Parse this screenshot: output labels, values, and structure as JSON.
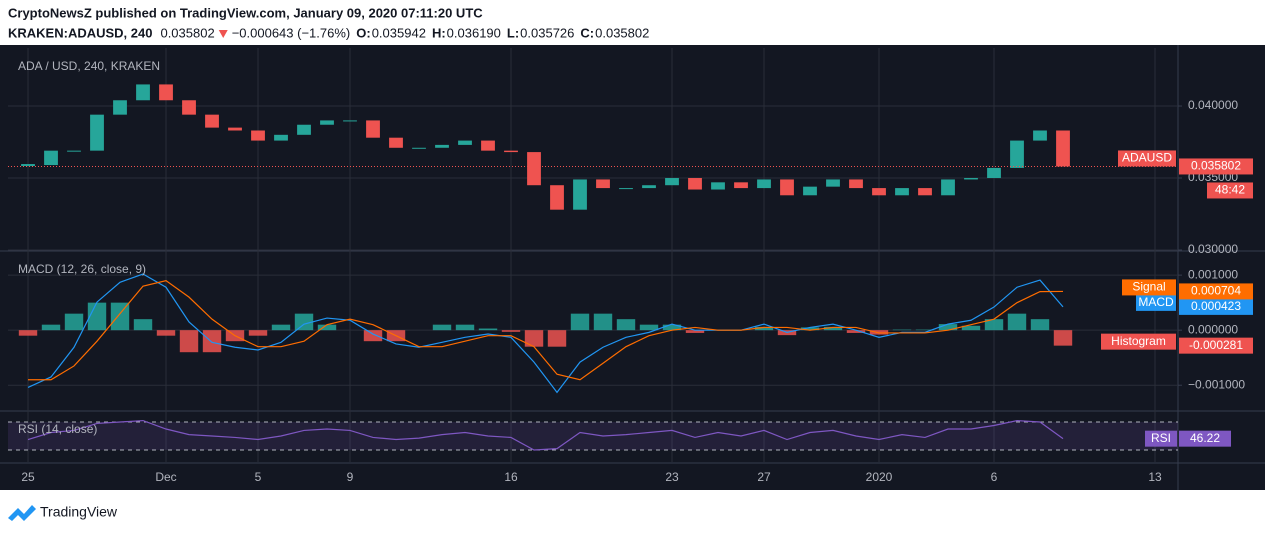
{
  "header": {
    "publisher": "CryptoNewsZ published on TradingView.com, January 09, 2020 07:11:20 UTC",
    "symbol": "KRAKEN:ADAUSD, 240",
    "last": "0.035802",
    "change": "−0.000643 (−1.76%)",
    "ohlc": [
      {
        "label": "O:",
        "value": "0.035942"
      },
      {
        "label": "H:",
        "value": "0.036190"
      },
      {
        "label": "L:",
        "value": "0.035726"
      },
      {
        "label": "C:",
        "value": "0.035802"
      }
    ]
  },
  "footer": {
    "brand": "TradingView"
  },
  "chart_data": [
    {
      "type": "candlestick",
      "title": "ADA / USD, 240, KRAKEN",
      "x": [
        0,
        1,
        2,
        3,
        4,
        5,
        6,
        7,
        8,
        9,
        10,
        11,
        12,
        13,
        14,
        15,
        16,
        17,
        18,
        19,
        20,
        21,
        22,
        23,
        24,
        25,
        26,
        27,
        28,
        29,
        30,
        31,
        32,
        33,
        34,
        35,
        36,
        37,
        38,
        39,
        40,
        41,
        42,
        43,
        44,
        45
      ],
      "xlim": [
        -0.87,
        50
      ],
      "xticks": [
        {
          "value": 0,
          "label": "25"
        },
        {
          "value": 6,
          "label": "Dec"
        },
        {
          "value": 10,
          "label": "5"
        },
        {
          "value": 14,
          "label": "9"
        },
        {
          "value": 21,
          "label": "16"
        },
        {
          "value": 28,
          "label": "23"
        },
        {
          "value": 32,
          "label": "27"
        },
        {
          "value": 37,
          "label": "2020"
        },
        {
          "value": 42,
          "label": "6"
        },
        {
          "value": 49,
          "label": "13"
        }
      ],
      "ylim": [
        0.03,
        0.04403
      ],
      "yticks": [
        {
          "value": 0.04,
          "label": "0.040000"
        },
        {
          "value": 0.035,
          "label": "0.035000"
        },
        {
          "value": 0.03,
          "label": "0.030000"
        }
      ],
      "grid": true,
      "countdown": "48:42",
      "series": [
        {
          "name": "ADAUSD",
          "up_color": "#26a69a",
          "down_color": "#ef5350",
          "values": [
            0.0359,
            0.0369,
            0.0369,
            0.0394,
            0.0404,
            0.0415,
            0.0404,
            0.0394,
            0.0385,
            0.0383,
            0.0376,
            0.038,
            0.0387,
            0.039,
            0.039,
            0.0378,
            0.0371,
            0.0371,
            0.0373,
            0.0376,
            0.0369,
            0.0368,
            0.0345,
            0.0328,
            0.0349,
            0.0343,
            0.0343,
            0.0345,
            0.035,
            0.0342,
            0.0347,
            0.0343,
            0.0349,
            0.0338,
            0.0344,
            0.0349,
            0.0343,
            0.0338,
            0.0343,
            0.0338,
            0.0349,
            0.035,
            0.0357,
            0.0376,
            0.0383,
            0.035802
          ]
        }
      ]
    },
    {
      "type": "macd",
      "title": "MACD (12, 26, close, 9)",
      "ylim": [
        -0.00145,
        0.00142
      ],
      "yticks": [
        {
          "value": 0.001,
          "label": "0.001000"
        },
        {
          "value": 0,
          "label": "0.000000"
        },
        {
          "value": -0.001,
          "label": "−0.001000"
        }
      ],
      "series": [
        {
          "name": "Histogram",
          "kind": "bars",
          "up_color": "#26a69a",
          "down_color": "#ef5350",
          "values": [
            -0.0001,
            0.0001,
            0.0003,
            0.0005,
            0.0005,
            0.0002,
            -0.0001,
            -0.0004,
            -0.0004,
            -0.0002,
            -0.0001,
            0.0001,
            0.0003,
            0.0001,
            0,
            -0.0002,
            -0.0002,
            0,
            0.0001,
            0.0001,
            3e-05,
            -3e-05,
            -0.0003,
            -0.0003,
            0.0003,
            0.0003,
            0.0002,
            0.0001,
            0.0001,
            -5e-05,
            0,
            0,
            6e-05,
            -9e-05,
            5e-05,
            6e-05,
            -5e-05,
            -8e-05,
            1e-05,
            1e-05,
            0.00011,
            8e-05,
            0.0002,
            0.0003,
            0.0002,
            -0.000281
          ]
        },
        {
          "name": "MACD",
          "kind": "line",
          "color": "#2196f3",
          "values": [
            -0.00104,
            -0.00085,
            -0.00031,
            0.00051,
            0.00087,
            0.00102,
            0.00078,
            0.00015,
            -0.00022,
            -0.00031,
            -0.00036,
            -0.00022,
            0.00011,
            0.00022,
            0.00018,
            -7e-05,
            -0.00025,
            -0.00031,
            -0.00022,
            -0.00013,
            -7e-05,
            -0.00013,
            -0.00058,
            -0.00113,
            -0.00058,
            -0.00031,
            -0.00013,
            -4e-05,
            0.00011,
            0,
            0,
            0,
            0.00011,
            -4e-05,
            5e-05,
            0.00011,
            0,
            -0.00013,
            -4e-05,
            -4e-05,
            0.00011,
            0.00018,
            0.00042,
            0.00078,
            0.00091,
            0.000423
          ]
        },
        {
          "name": "Signal",
          "kind": "line",
          "color": "#ff6d00",
          "values": [
            -0.0009,
            -0.0009,
            -0.00065,
            -0.0002,
            0.0003,
            0.0008,
            0.0009,
            0.0006,
            0.0002,
            -0.0001,
            -0.0003,
            -0.0003,
            -0.0002,
            0.0001,
            0.0002,
            0.0001,
            -0.0001,
            -0.0003,
            -0.0003,
            -0.0002,
            -0.0001,
            -0.0001,
            -0.0003,
            -0.0008,
            -0.0009,
            -0.0006,
            -0.0003,
            -0.0001,
            0,
            5e-05,
            0,
            0,
            5e-05,
            5e-05,
            0,
            5e-05,
            5e-05,
            -5e-05,
            -5e-05,
            -5e-05,
            0,
            0.0001,
            0.0002,
            0.0005,
            0.0007,
            0.000704
          ]
        }
      ]
    },
    {
      "type": "rsi",
      "title": "RSI (14, close)",
      "ylim": [
        12.9,
        84.3
      ],
      "band": [
        30,
        70
      ],
      "band_color": "#7e57c2",
      "series": [
        {
          "name": "RSI",
          "color": "#7e57c2",
          "values": [
            45,
            55,
            58,
            68,
            70,
            72,
            60,
            52,
            50,
            48,
            45,
            50,
            58,
            60,
            58,
            48,
            45,
            47,
            52,
            55,
            50,
            48,
            30,
            32,
            55,
            50,
            52,
            55,
            58,
            48,
            55,
            50,
            58,
            45,
            55,
            58,
            50,
            45,
            52,
            48,
            60,
            60,
            65,
            72,
            70,
            46.22
          ]
        }
      ]
    }
  ]
}
